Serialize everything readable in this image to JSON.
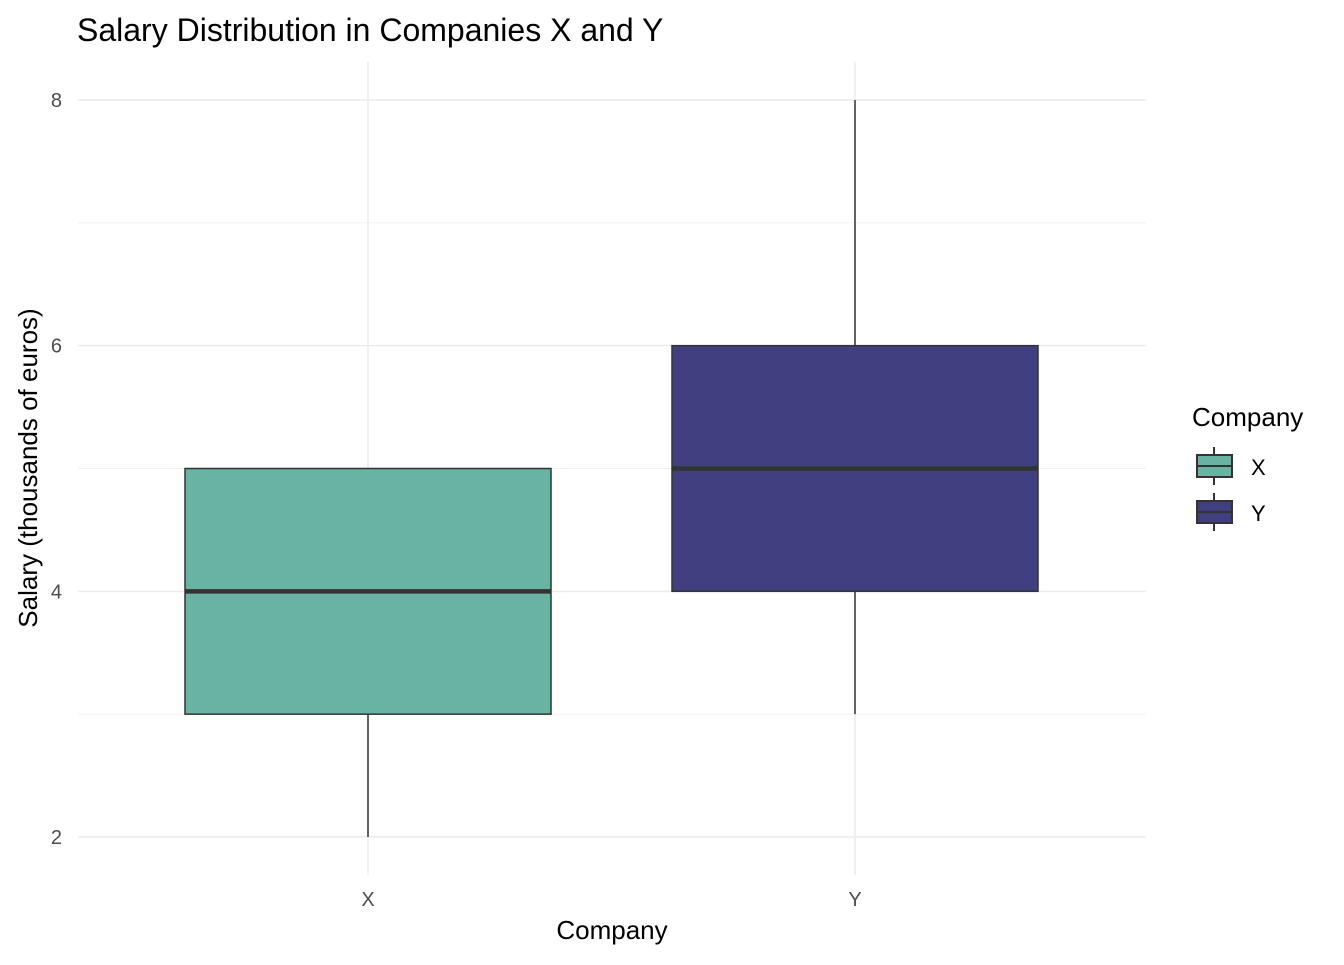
{
  "chart_data": {
    "type": "box",
    "title": "Salary Distribution in Companies X and Y",
    "xlabel": "Company",
    "ylabel": "Salary (thousands of euros)",
    "ylim": [
      1.7,
      8.3
    ],
    "yticks": [
      2,
      4,
      6,
      8
    ],
    "yminor": [
      3,
      5,
      7
    ],
    "grid": true,
    "categories": [
      "X",
      "Y"
    ],
    "boxes": [
      {
        "name": "X",
        "whisker_low": 2,
        "q1": 3,
        "median": 4,
        "q3": 5,
        "whisker_high": 5,
        "color": "#69b3a2"
      },
      {
        "name": "Y",
        "whisker_low": 3,
        "q1": 4,
        "median": 5,
        "q3": 6,
        "whisker_high": 8,
        "color": "#404080"
      }
    ],
    "legend": {
      "title": "Company",
      "position": "right",
      "entries": [
        "X",
        "Y"
      ]
    }
  }
}
